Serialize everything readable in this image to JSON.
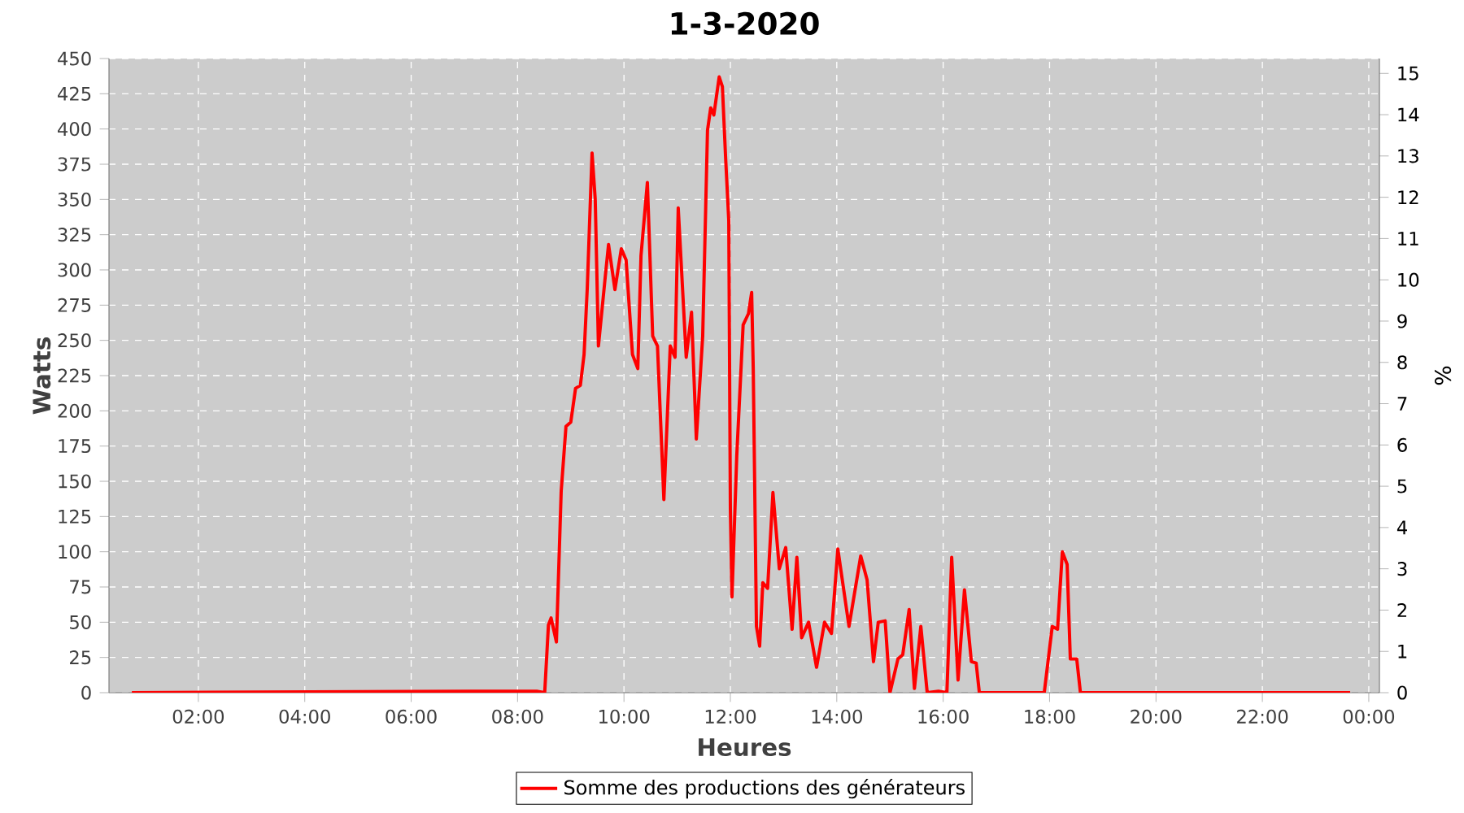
{
  "chart_data": {
    "type": "line",
    "title": "1-3-2020",
    "xlabel": "Heures",
    "ylabel": "Watts",
    "y2label": "%",
    "x": [
      0.75,
      7.14,
      8.36,
      8.51,
      8.58,
      8.63,
      8.73,
      8.82,
      8.91,
      9.0,
      9.09,
      9.18,
      9.25,
      9.31,
      9.4,
      9.46,
      9.52,
      9.64,
      9.71,
      9.83,
      9.95,
      10.04,
      10.16,
      10.26,
      10.32,
      10.44,
      10.54,
      10.63,
      10.75,
      10.87,
      10.96,
      11.02,
      11.17,
      11.27,
      11.36,
      11.48,
      11.57,
      11.63,
      11.69,
      11.79,
      11.85,
      11.91,
      11.97,
      12.0,
      12.03,
      12.12,
      12.24,
      12.34,
      12.4,
      12.43,
      12.49,
      12.55,
      12.61,
      12.7,
      12.8,
      12.92,
      13.04,
      13.16,
      13.25,
      13.34,
      13.47,
      13.62,
      13.77,
      13.9,
      14.02,
      14.23,
      14.45,
      14.57,
      14.69,
      14.78,
      14.91,
      15.0,
      15.15,
      15.24,
      15.36,
      15.46,
      15.58,
      15.7,
      15.91,
      16.07,
      16.16,
      16.28,
      16.4,
      16.53,
      16.62,
      16.68,
      17.9,
      18.05,
      18.15,
      18.24,
      18.33,
      18.39,
      18.51,
      18.58,
      23.65
    ],
    "series": [
      {
        "name": "Somme des productions des  générateurs",
        "color": "#ff0000",
        "values": [
          0,
          1,
          1,
          0,
          48,
          53,
          36,
          143,
          189,
          192,
          216,
          218,
          240,
          287,
          383,
          350,
          246,
          292,
          318,
          286,
          315,
          307,
          240,
          230,
          310,
          362,
          253,
          246,
          137,
          246,
          238,
          344,
          238,
          270,
          180,
          253,
          399,
          415,
          410,
          437,
          430,
          380,
          335,
          130,
          68,
          168,
          261,
          269,
          284,
          230,
          47,
          33,
          78,
          74,
          142,
          88,
          103,
          45,
          96,
          39,
          50,
          18,
          50,
          42,
          102,
          47,
          97,
          80,
          22,
          50,
          51,
          0,
          24,
          27,
          59,
          3,
          47,
          0,
          1,
          0,
          96,
          9,
          73,
          22,
          21,
          0,
          0,
          47,
          45,
          100,
          91,
          24,
          24,
          0,
          0
        ]
      }
    ],
    "xlim": [
      0.32,
      24.2
    ],
    "xticks": [
      {
        "value": 2,
        "label": "02:00"
      },
      {
        "value": 4,
        "label": "04:00"
      },
      {
        "value": 6,
        "label": "06:00"
      },
      {
        "value": 8,
        "label": "08:00"
      },
      {
        "value": 10,
        "label": "10:00"
      },
      {
        "value": 12,
        "label": "12:00"
      },
      {
        "value": 14,
        "label": "14:00"
      },
      {
        "value": 16,
        "label": "16:00"
      },
      {
        "value": 18,
        "label": "18:00"
      },
      {
        "value": 20,
        "label": "20:00"
      },
      {
        "value": 22,
        "label": "22:00"
      },
      {
        "value": 24,
        "label": "00:00"
      }
    ],
    "ylim": [
      0,
      450
    ],
    "yticks": [
      0,
      25,
      50,
      75,
      100,
      125,
      150,
      175,
      200,
      225,
      250,
      275,
      300,
      325,
      350,
      375,
      400,
      425,
      450
    ],
    "y2lim": [
      0,
      15.36
    ],
    "y2ticks": [
      0,
      1,
      2,
      3,
      4,
      5,
      6,
      7,
      8,
      9,
      10,
      11,
      12,
      13,
      14,
      15
    ],
    "grid": true,
    "legend": "bottom",
    "marker": "none",
    "line_style": "solid"
  }
}
